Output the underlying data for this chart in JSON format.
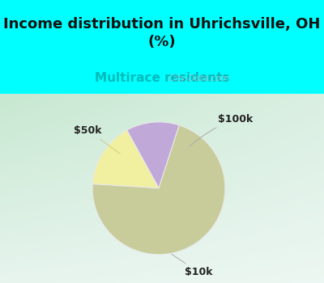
{
  "title": "Income distribution in Uhrichsville, OH\n(%)",
  "subtitle": "Multirace residents",
  "title_fontsize": 13,
  "subtitle_fontsize": 11,
  "title_color": "#111111",
  "subtitle_color": "#00bbbb",
  "slices": [
    {
      "label": "$100k",
      "value": 13,
      "color": "#c0a8d8"
    },
    {
      "label": "$50k",
      "value": 16,
      "color": "#f0f0a0"
    },
    {
      "label": "$10k",
      "value": 71,
      "color": "#c8cc9a"
    }
  ],
  "start_angle": 72,
  "bg_top_color": "#00ffff",
  "watermark": "  City-Data.com",
  "watermark_color": "#aabbcc",
  "label_fontsize": 9,
  "label_color": "#222222"
}
